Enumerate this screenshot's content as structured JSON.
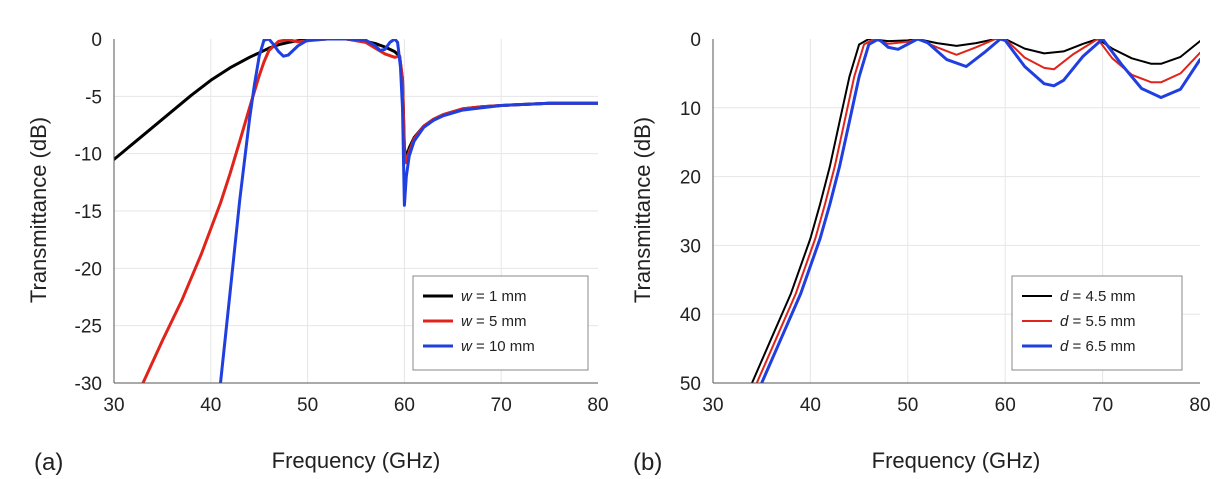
{
  "chart_data": [
    {
      "type": "line",
      "panel_label": "(a)",
      "xlabel": "Frequency (GHz)",
      "ylabel": "Transmittance (dB)",
      "xlim": [
        30,
        80
      ],
      "ylim": [
        -30,
        0
      ],
      "xticks": [
        "30",
        "40",
        "50",
        "60",
        "70",
        "80"
      ],
      "yticks": [
        "0",
        "-5",
        "-10",
        "-15",
        "-20",
        "-25",
        "-30"
      ],
      "legend_position": "bottom-right",
      "series": [
        {
          "name_var": "w",
          "name_rest": " = 1 mm",
          "color": "#000000",
          "width": 3,
          "x": [
            30,
            32,
            34,
            36,
            38,
            40,
            42,
            44,
            45,
            46,
            47,
            48,
            49,
            50,
            52,
            54,
            56,
            57,
            58,
            59,
            59.5,
            59.8,
            60,
            60.2,
            60.5,
            61,
            62,
            63,
            64,
            66,
            68,
            70,
            75,
            80
          ],
          "y": [
            -10.5,
            -9.1,
            -7.7,
            -6.3,
            -4.9,
            -3.6,
            -2.5,
            -1.6,
            -1.2,
            -0.8,
            -0.5,
            -0.3,
            -0.15,
            -0.05,
            0,
            0,
            -0.2,
            -0.4,
            -0.7,
            -1.1,
            -1.5,
            -3.5,
            -9.5,
            -10.4,
            -9.5,
            -8.6,
            -7.6,
            -7.0,
            -6.6,
            -6.1,
            -5.9,
            -5.8,
            -5.6,
            -5.6
          ]
        },
        {
          "name_var": "w",
          "name_rest": " = 5 mm",
          "color": "#e0241b",
          "width": 3,
          "x": [
            33,
            35,
            37,
            39,
            41,
            42,
            43,
            44,
            45,
            45.5,
            46,
            47,
            48,
            49,
            50,
            52,
            54,
            56,
            57,
            58,
            59,
            59.5,
            59.8,
            60,
            60.2,
            60.5,
            61,
            62,
            63,
            64,
            66,
            68,
            70,
            75,
            80
          ],
          "y": [
            -30,
            -26.3,
            -22.8,
            -18.8,
            -14.3,
            -11.7,
            -8.9,
            -6.0,
            -3.2,
            -2.0,
            -1.0,
            -0.2,
            -0.05,
            -0.25,
            -0.15,
            0,
            0,
            -0.3,
            -0.8,
            -1.3,
            -1.6,
            -1.5,
            -3.5,
            -9.8,
            -10.8,
            -9.8,
            -8.7,
            -7.6,
            -7.0,
            -6.6,
            -6.1,
            -5.9,
            -5.8,
            -5.6,
            -5.6
          ]
        },
        {
          "name_var": "w",
          "name_rest": " = 10 mm",
          "color": "#1f3fe0",
          "width": 3,
          "x": [
            41,
            42,
            43,
            44,
            44.5,
            45,
            45.5,
            46,
            46.5,
            47,
            47.5,
            48,
            49,
            50,
            52,
            54,
            56,
            57,
            57.5,
            58,
            58.5,
            59,
            59.3,
            59.6,
            59.8,
            60,
            60.2,
            60.5,
            61,
            62,
            63,
            64,
            66,
            68,
            70,
            75,
            80
          ],
          "y": [
            -30,
            -22,
            -14,
            -7,
            -4,
            -1.5,
            -0.1,
            0,
            -0.5,
            -1.1,
            -1.5,
            -1.4,
            -0.6,
            -0.1,
            0,
            0,
            -0.1,
            -0.6,
            -1.0,
            -0.9,
            -0.3,
            0,
            -0.3,
            -2.5,
            -6.0,
            -14.5,
            -12.0,
            -10.2,
            -8.9,
            -7.7,
            -7.1,
            -6.7,
            -6.2,
            -6.0,
            -5.8,
            -5.6,
            -5.6
          ]
        }
      ]
    },
    {
      "type": "line",
      "panel_label": "(b)",
      "xlabel": "Frequency (GHz)",
      "ylabel": "Transmittance (dB)",
      "xlim": [
        30,
        80
      ],
      "ylim": [
        -50,
        0
      ],
      "xticks": [
        "30",
        "40",
        "50",
        "60",
        "70",
        "80"
      ],
      "yticks": [
        "0",
        "10",
        "20",
        "30",
        "40",
        "50"
      ],
      "legend_position": "bottom-right",
      "series": [
        {
          "name_var": "d",
          "name_rest": " = 4.5 mm",
          "color": "#000000",
          "width": 2,
          "x": [
            34,
            36,
            38,
            40,
            41,
            42,
            43,
            44,
            45,
            46,
            48,
            50,
            51,
            53,
            55,
            57,
            59,
            60,
            62,
            64,
            66,
            68,
            69.5,
            71,
            73,
            75,
            76,
            78,
            80
          ],
          "y": [
            -50,
            -43.5,
            -37,
            -29,
            -24,
            -18.5,
            -12,
            -5.5,
            -0.8,
            0,
            -0.3,
            -0.2,
            0,
            -0.6,
            -1.0,
            -0.6,
            0,
            0,
            -1.4,
            -2.1,
            -1.8,
            -0.7,
            0,
            -1.4,
            -2.8,
            -3.6,
            -3.6,
            -2.6,
            -0.3
          ]
        },
        {
          "name_var": "d",
          "name_rest": " = 5.5 mm",
          "color": "#e0241b",
          "width": 2,
          "x": [
            34.5,
            36.5,
            38.5,
            40.5,
            41.5,
            42.5,
            43.5,
            44.5,
            45.5,
            46.5,
            48,
            50,
            51,
            53,
            55,
            57,
            59,
            60,
            62,
            64,
            65,
            67,
            69.5,
            71,
            73,
            75,
            76,
            78,
            80
          ],
          "y": [
            -50,
            -43.5,
            -37,
            -29,
            -24,
            -18.5,
            -12,
            -5.5,
            -0.8,
            0,
            -0.7,
            -0.4,
            0,
            -1.2,
            -2.3,
            -1.2,
            0,
            0,
            -2.7,
            -4.2,
            -4.4,
            -2.2,
            0,
            -2.8,
            -5.2,
            -6.3,
            -6.3,
            -5.0,
            -2.0
          ]
        },
        {
          "name_var": "d",
          "name_rest": " = 6.5 mm",
          "color": "#1f3fe0",
          "width": 3,
          "x": [
            35,
            37,
            39,
            41,
            42,
            43,
            44,
            45,
            46,
            47,
            48,
            49,
            51,
            52,
            54,
            56,
            58,
            59.5,
            60,
            62,
            64,
            65,
            66,
            68,
            70,
            72,
            74,
            76,
            78,
            80
          ],
          "y": [
            -50,
            -43.5,
            -37,
            -29,
            -24,
            -18.5,
            -12,
            -5.5,
            -0.8,
            0,
            -1.2,
            -1.5,
            0,
            -0.5,
            -3.0,
            -4.0,
            -1.8,
            0,
            -0.2,
            -4.0,
            -6.5,
            -6.8,
            -6.0,
            -2.5,
            0,
            -3.8,
            -7.2,
            -8.5,
            -7.3,
            -3.0
          ]
        }
      ]
    }
  ]
}
